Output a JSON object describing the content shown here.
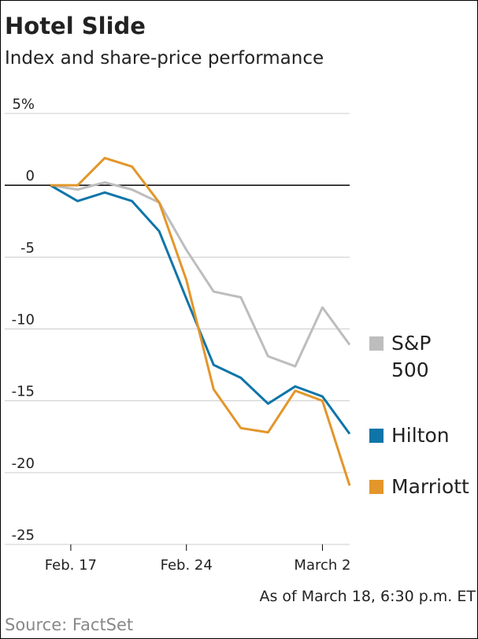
{
  "chart_data": {
    "type": "line",
    "title": "Hotel Slide",
    "subtitle": "Index and share-price performance",
    "x": [
      "Feb. 14",
      "Feb. 18",
      "Feb. 19",
      "Feb. 20",
      "Feb. 21",
      "Feb. 24",
      "Feb. 25",
      "Feb. 26",
      "Feb. 27",
      "Feb. 28",
      "March 2",
      "March 3"
    ],
    "series": [
      {
        "name": "S&P 500",
        "color": "#bdbdbd",
        "values": [
          0,
          -0.3,
          0.2,
          -0.3,
          -1.2,
          -4.5,
          -7.4,
          -7.8,
          -11.9,
          -12.6,
          -8.5,
          -11.1
        ]
      },
      {
        "name": "Hilton",
        "color": "#0f75a8",
        "values": [
          0,
          -1.1,
          -0.5,
          -1.1,
          -3.2,
          -7.9,
          -12.5,
          -13.4,
          -15.2,
          -14.0,
          -14.7,
          -17.3
        ]
      },
      {
        "name": "Marriott",
        "color": "#e3962a",
        "values": [
          0,
          0,
          1.9,
          1.3,
          -1.2,
          -6.6,
          -14.2,
          -16.9,
          -17.2,
          -14.3,
          -15.0,
          -20.9
        ]
      }
    ],
    "ylim": [
      -25,
      5
    ],
    "yticks": [
      {
        "value": 5,
        "label": "5%"
      },
      0,
      -5,
      -10,
      -15,
      -20,
      -25
    ],
    "xticks": [
      "Feb. 17",
      "Feb. 24",
      "March 2"
    ],
    "grid": true,
    "note": "As of March 18, 6:30 p.m. ET",
    "source": "Source: FactSet"
  }
}
